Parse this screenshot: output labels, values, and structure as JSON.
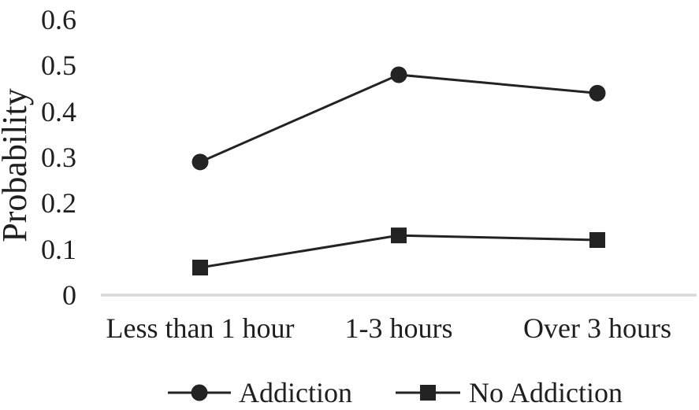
{
  "chart_data": {
    "type": "line",
    "title": "",
    "xlabel": "",
    "ylabel": "Probability",
    "categories": [
      "Less than 1 hour",
      "1-3 hours",
      "Over 3 hours"
    ],
    "series": [
      {
        "name": "Addiction",
        "marker": "circle",
        "values": [
          0.29,
          0.48,
          0.44
        ]
      },
      {
        "name": "No Addiction",
        "marker": "square",
        "values": [
          0.06,
          0.13,
          0.12
        ]
      }
    ],
    "ylim": [
      0,
      0.6
    ],
    "ytick_labels": [
      "0.6",
      "0.5",
      "0.4",
      "0.3",
      "0.2",
      "0.1",
      "0"
    ],
    "ytick_values": [
      0.6,
      0.5,
      0.4,
      0.3,
      0.2,
      0.1,
      0
    ],
    "grid": false,
    "legend_position": "bottom",
    "colors": {
      "series": "#232323",
      "axis_line": "#d9d9d9",
      "text": "#1f1f1f",
      "background": "#ffffff"
    }
  }
}
